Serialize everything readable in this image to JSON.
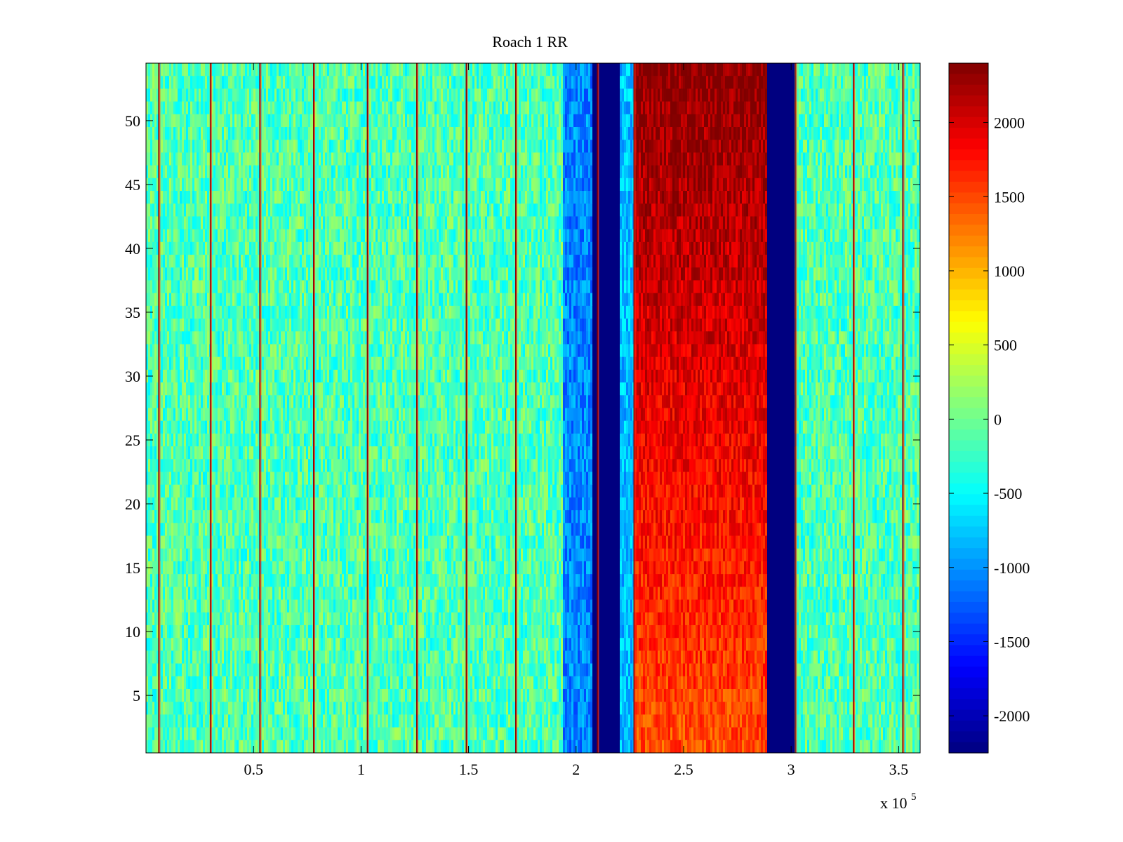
{
  "chart_data": {
    "type": "heatmap",
    "title": "Roach 1 RR",
    "xlabel": "",
    "ylabel": "",
    "x_multiplier_label": "x 10",
    "x_multiplier_exponent": "5",
    "xlim": [
      0,
      3.6
    ],
    "ylim": [
      0.5,
      54.5
    ],
    "x_ticks": [
      0.5,
      1,
      1.5,
      2,
      2.5,
      3,
      3.5
    ],
    "x_tick_labels": [
      "0.5",
      "1",
      "1.5",
      "2",
      "2.5",
      "3",
      "3.5"
    ],
    "y_ticks": [
      5,
      10,
      15,
      20,
      25,
      30,
      35,
      40,
      45,
      50
    ],
    "y_tick_labels": [
      "5",
      "10",
      "15",
      "20",
      "25",
      "30",
      "35",
      "40",
      "45",
      "50"
    ],
    "rows": 54,
    "colormap": "jet",
    "clim": [
      -2250,
      2400
    ],
    "colorbar": {
      "ticks": [
        -2000,
        -1500,
        -1000,
        -500,
        0,
        500,
        1000,
        1500,
        2000
      ],
      "tick_labels": [
        "-2000",
        "-1500",
        "-1000",
        "-500",
        "0",
        "500",
        "1000",
        "1500",
        "2000"
      ],
      "location": "east"
    },
    "regions": [
      {
        "x_start": 0.0,
        "x_end": 1.94,
        "base_value": -150,
        "noise": 420,
        "profile": "flat"
      },
      {
        "x_start": 1.94,
        "x_end": 2.08,
        "base_value": -1050,
        "noise": 320,
        "profile": "flat"
      },
      {
        "x_start": 2.08,
        "x_end": 2.2,
        "base_value": -2250,
        "noise": 0,
        "profile": "flat"
      },
      {
        "x_start": 2.2,
        "x_end": 2.27,
        "base_value": -800,
        "noise": 300,
        "profile": "flat"
      },
      {
        "x_start": 2.27,
        "x_end": 2.89,
        "base_value": 1700,
        "noise": 280,
        "profile": "rising_with_row"
      },
      {
        "x_start": 2.89,
        "x_end": 3.02,
        "base_value": -2250,
        "noise": 0,
        "profile": "flat"
      },
      {
        "x_start": 3.02,
        "x_end": 3.6,
        "base_value": -150,
        "noise": 420,
        "profile": "flat"
      }
    ],
    "periodic_spike_lines_x": [
      0.06,
      0.3,
      0.53,
      0.78,
      1.03,
      1.26,
      1.49,
      1.72,
      2.1,
      2.27,
      3.02,
      3.29,
      3.52
    ]
  }
}
